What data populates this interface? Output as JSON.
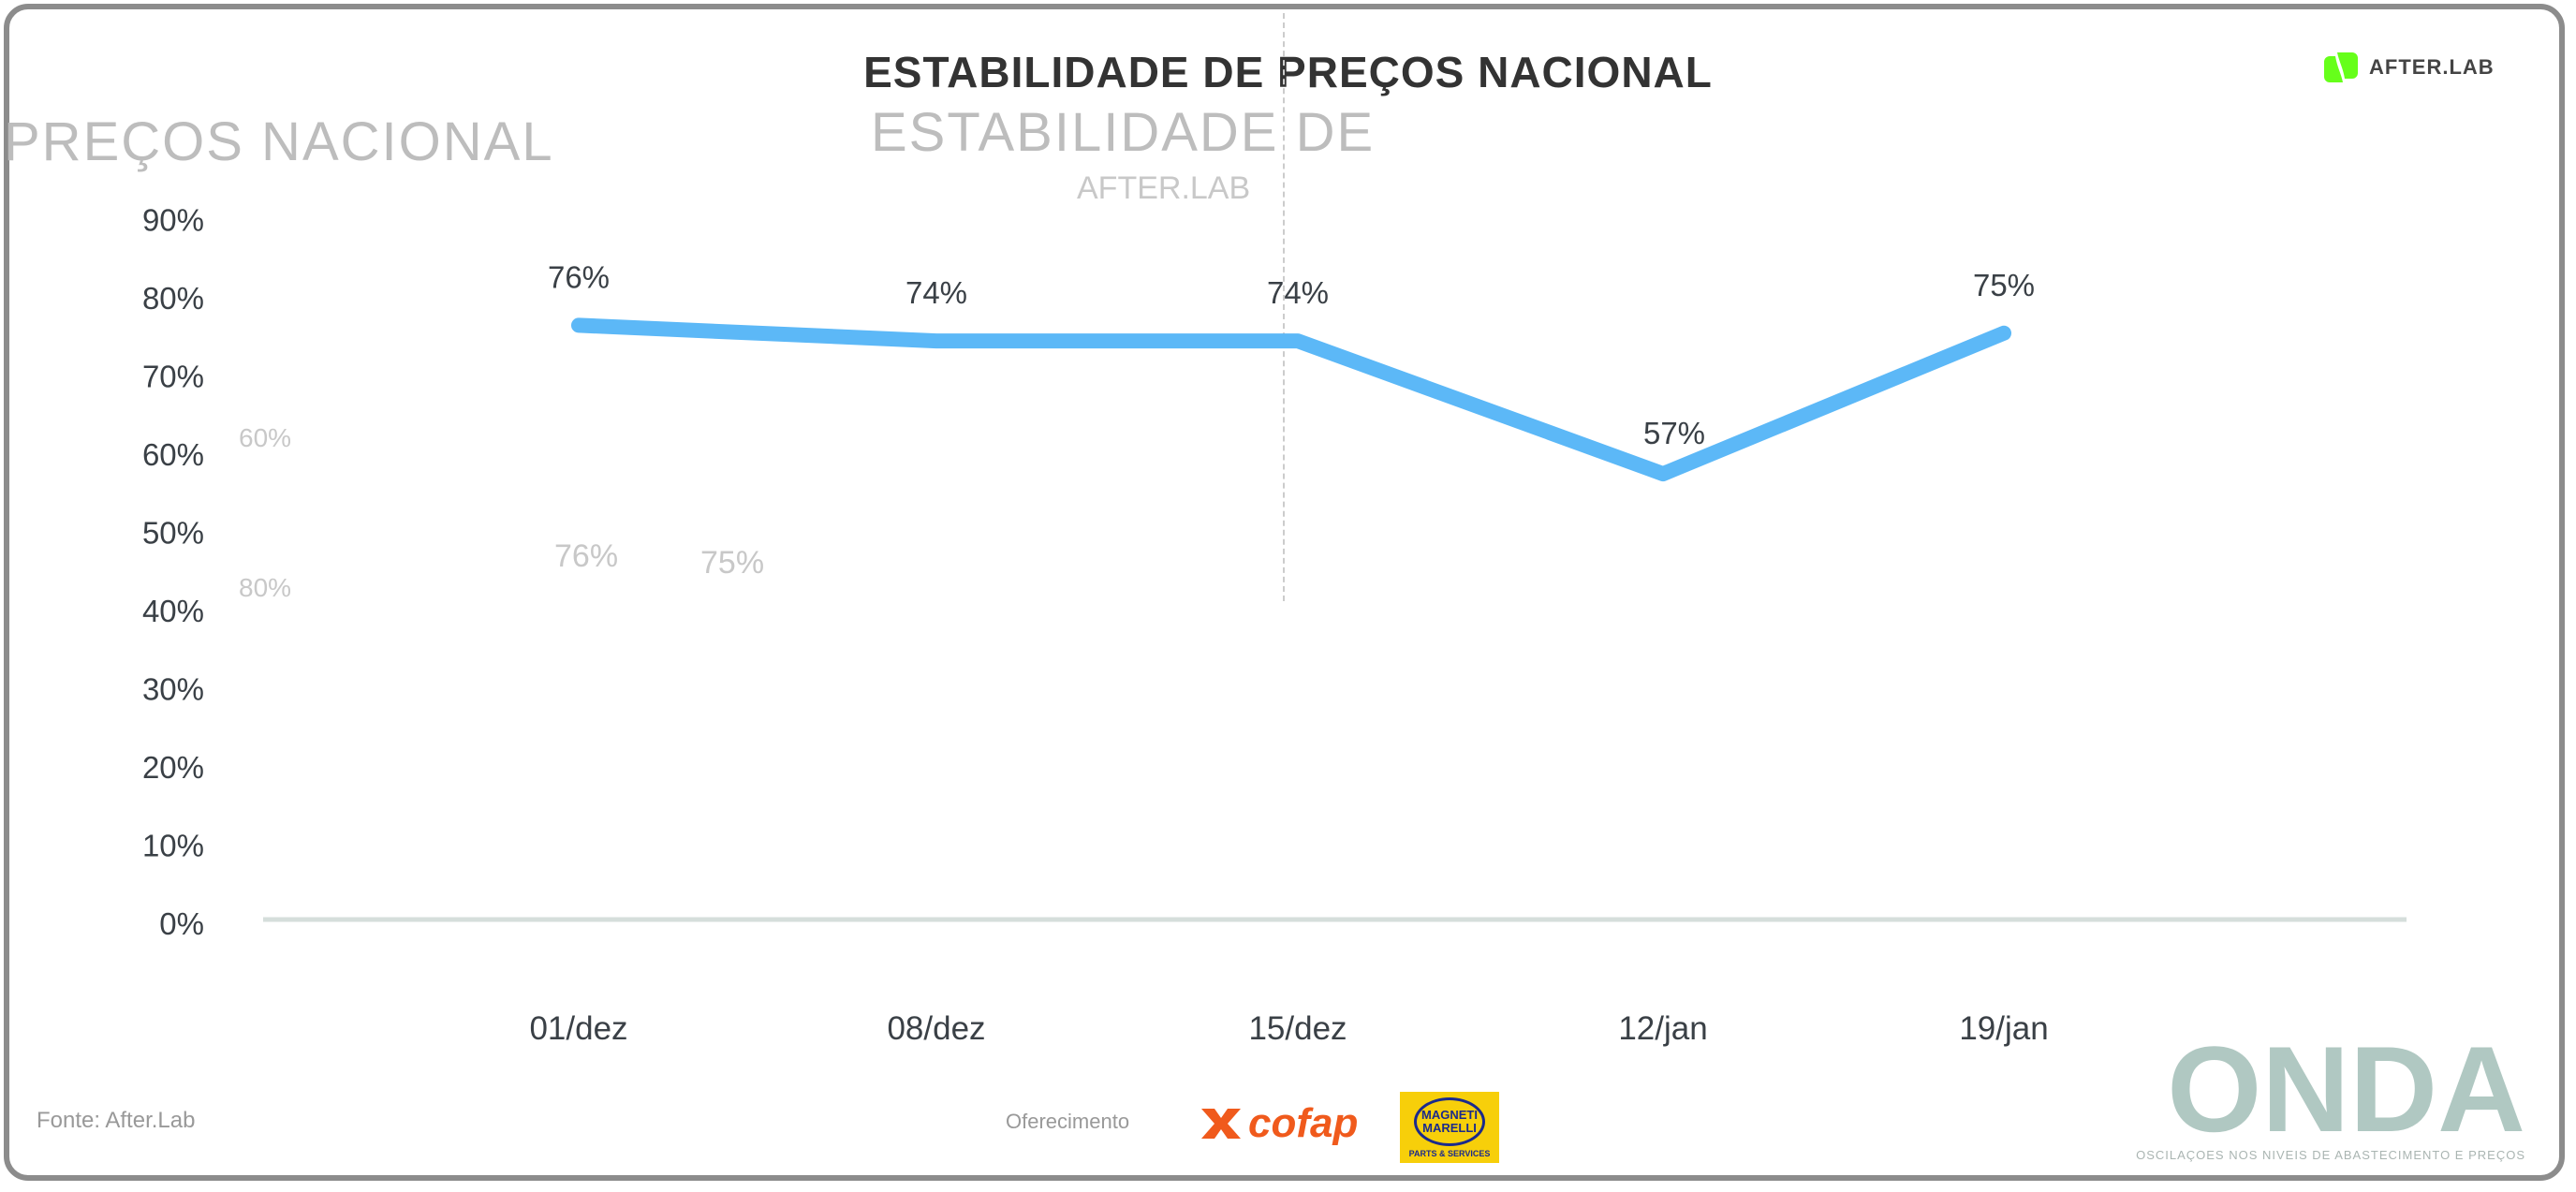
{
  "header": {
    "title": "ESTABILIDADE DE PREÇOS NACIONAL",
    "brand": "AFTER.LAB",
    "ghost_left": "PREÇOS NACIONAL",
    "ghost_center": "ESTABILIDADE DE",
    "ghost_brand": "AFTER.LAB",
    "ghost_values": [
      "76%",
      "75%",
      "80%",
      "60%"
    ]
  },
  "footer": {
    "source": "Fonte: After.Lab",
    "offered_by": "Oferecimento",
    "sponsor1": "cofap",
    "sponsor2_line1": "MAGNETI",
    "sponsor2_line2": "MARELLI",
    "sponsor2_sub": "PARTS & SERVICES",
    "logo": "ONDA",
    "logo_subtitle": "OSCILAÇOES NOS NIVEIS DE ABASTECIMENTO E PREÇOS"
  },
  "colors": {
    "line": "#5cb8f7",
    "baseline": "#d5dedb",
    "brand_green": "#66ff1a"
  },
  "chart_data": {
    "type": "line",
    "title": "ESTABILIDADE DE PREÇOS NACIONAL",
    "categories": [
      "01/dez",
      "08/dez",
      "15/dez",
      "12/jan",
      "19/jan"
    ],
    "values": [
      76,
      74,
      74,
      57,
      75
    ],
    "data_labels": [
      "76%",
      "74%",
      "74%",
      "57%",
      "75%"
    ],
    "yticks": [
      "0%",
      "10%",
      "20%",
      "30%",
      "40%",
      "50%",
      "60%",
      "70%",
      "80%",
      "90%"
    ],
    "ylim": [
      0,
      90
    ],
    "xlabel": "",
    "ylabel": "",
    "grid": false,
    "legend": "none"
  }
}
